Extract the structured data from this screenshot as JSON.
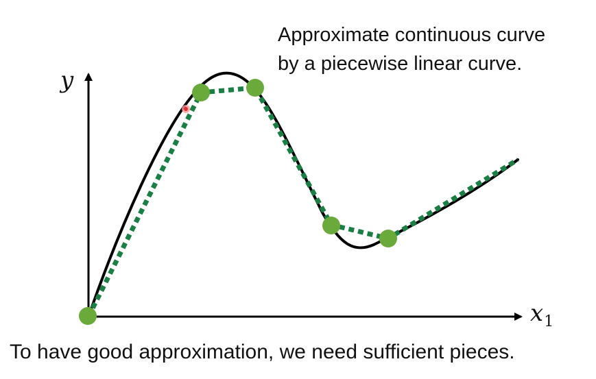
{
  "annotation": {
    "line1": "Approximate continuous curve",
    "line2": "by a piecewise linear curve."
  },
  "footer": {
    "text": "To have good approximation, we need sufficient pieces."
  },
  "axes": {
    "y_label": "y",
    "x_label": "x",
    "x_subscript": "1"
  },
  "colors": {
    "curve": "#000000",
    "piecewise": "#1a7f45",
    "point": "#6aaa3a",
    "cursor": "#e03030"
  }
}
